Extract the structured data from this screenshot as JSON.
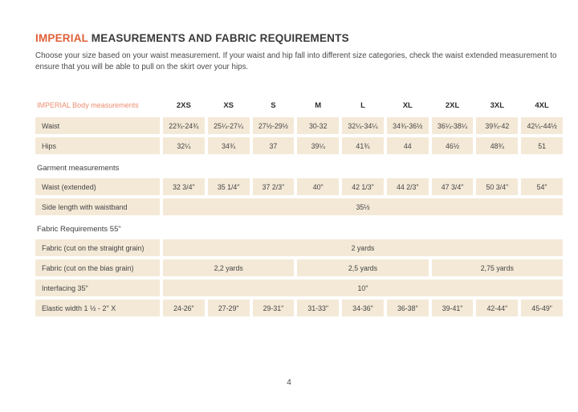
{
  "page": {
    "title_accent": "IMPERIAL",
    "title_rest": " MEASUREMENTS AND FABRIC REQUIREMENTS",
    "intro": "Choose your size based on your waist measurement. If your waist and hip fall into different size categories, check the waist extended measurement to ensure that you will be able to pull on the skirt over your hips.",
    "page_number": "4"
  },
  "colors": {
    "accent_title": "#e06038",
    "accent_table_label": "#ec8c70",
    "cell_background": "#f4e9d7",
    "body_text": "#444444"
  },
  "table": {
    "header_label": "IMPERIAL Body measurements",
    "sizes": [
      "2XS",
      "XS",
      "S",
      "M",
      "L",
      "XL",
      "2XL",
      "3XL",
      "4XL"
    ],
    "rows": [
      {
        "type": "data",
        "label": "Waist",
        "cells": [
          "22¾-24¾",
          "25¼-27¼",
          "27½-29½",
          "30-32",
          "32¼-34¼",
          "34¾-36½",
          "36¼-38¼",
          "39¾-42",
          "42¼-44½"
        ]
      },
      {
        "type": "data",
        "label": "Hips",
        "cells": [
          "32¼",
          "34¾",
          "37",
          "39¼",
          "41¾",
          "44",
          "46½",
          "48¾",
          "51"
        ]
      },
      {
        "type": "section",
        "label": "Garment measurements"
      },
      {
        "type": "data",
        "label": "Waist (extended)",
        "cells": [
          "32 3/4\"",
          "35 1/4\"",
          "37 2/3\"",
          "40\"",
          "42 1/3\"",
          "44 2/3\"",
          "47 3/4\"",
          "50 3/4\"",
          "54\""
        ]
      },
      {
        "type": "merged",
        "label": "Side length with waistband",
        "cells": [
          {
            "text": "35½",
            "span": 9
          }
        ]
      },
      {
        "type": "section",
        "label": "Fabric Requirements 55\""
      },
      {
        "type": "merged",
        "label": "Fabric (cut on the straight grain)",
        "cells": [
          {
            "text": "2 yards",
            "span": 9
          }
        ]
      },
      {
        "type": "merged",
        "label": "Fabric (cut on the bias grain)",
        "cells": [
          {
            "text": "2,2 yards",
            "span": 3
          },
          {
            "text": "2,5 yards",
            "span": 3
          },
          {
            "text": "2,75 yards",
            "span": 3
          }
        ]
      },
      {
        "type": "merged",
        "label": "Interfacing 35\"",
        "cells": [
          {
            "text": "10\"",
            "span": 9
          }
        ]
      },
      {
        "type": "data",
        "label": "Elastic width 1 ½ - 2\" X",
        "cells": [
          "24-26\"",
          "27-29\"",
          "29-31\"",
          "31-33\"",
          "34-36\"",
          "36-38\"",
          "39-41\"",
          "42-44\"",
          "45-49\""
        ]
      }
    ]
  }
}
